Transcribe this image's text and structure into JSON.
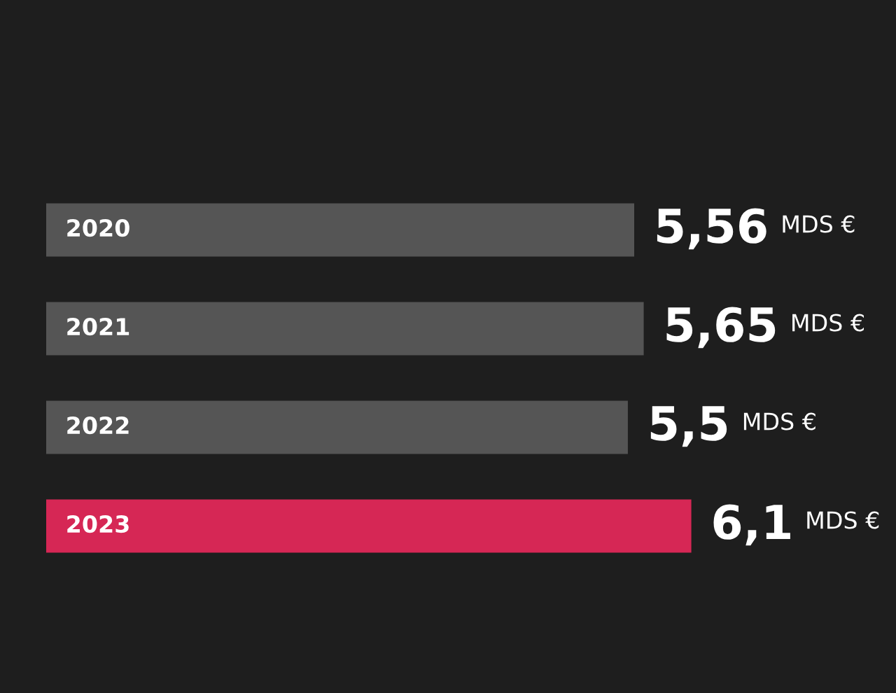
{
  "chart_data": {
    "type": "bar",
    "orientation": "horizontal",
    "categories": [
      "2020",
      "2021",
      "2022",
      "2023"
    ],
    "values": [
      5.56,
      5.65,
      5.5,
      6.1
    ],
    "colors": [
      "#555555",
      "#555555",
      "#555555",
      "#d62755"
    ],
    "value_labels": [
      "5,56 MDS €",
      "5,65 MDS €",
      "5,5 MDS €",
      "6,1 MDS €"
    ]
  }
}
